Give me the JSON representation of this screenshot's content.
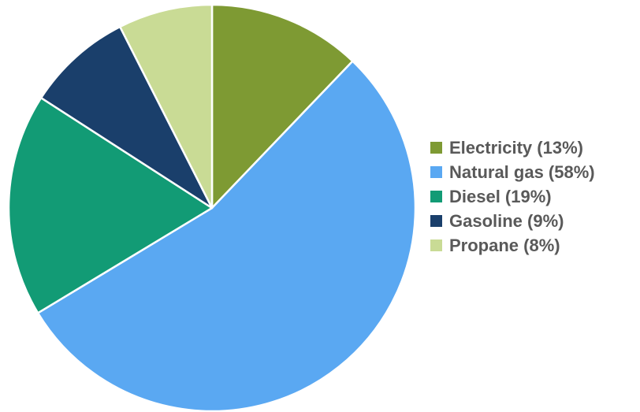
{
  "chart_data": {
    "type": "pie",
    "title": "",
    "legend_position": "right",
    "slices": [
      {
        "label": "Electricity",
        "legend_text": "Electricity (13%)",
        "value": 13,
        "color": "#7E9A33"
      },
      {
        "label": "Natural gas",
        "legend_text": "Natural gas (58%)",
        "value": 58,
        "color": "#5AA8F2"
      },
      {
        "label": "Diesel",
        "legend_text": "Diesel (19%)",
        "value": 19,
        "color": "#129B75"
      },
      {
        "label": "Gasoline",
        "legend_text": "Gasoline (9%)",
        "value": 9,
        "color": "#1A3F6B"
      },
      {
        "label": "Propane",
        "legend_text": "Propane (8%)",
        "value": 8,
        "color": "#C9DB95"
      }
    ]
  }
}
